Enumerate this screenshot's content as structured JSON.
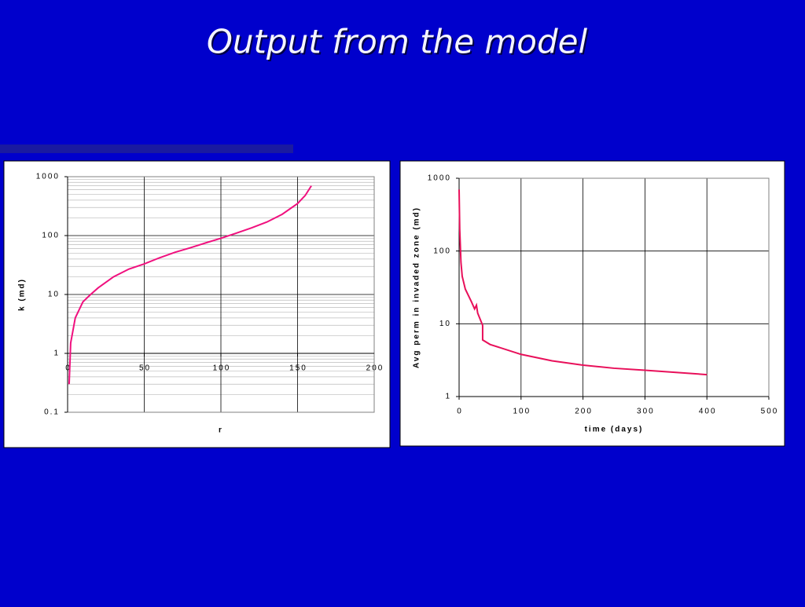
{
  "title": "Output from the model",
  "chart_data": [
    {
      "type": "line",
      "xlabel": "r",
      "ylabel": "k (md)",
      "xlim": [
        0,
        200
      ],
      "xticks": [
        0,
        50,
        100,
        150,
        200
      ],
      "ylim": [
        0.1,
        1000
      ],
      "yticks": [
        0.1,
        1,
        10,
        100,
        1000
      ],
      "log_y": true,
      "grid": true,
      "minor_grid": true,
      "x_axis_crosses": 1,
      "series": [
        {
          "color": "#f0107e",
          "x": [
            1,
            2,
            5,
            10,
            15,
            20,
            30,
            40,
            50,
            60,
            70,
            80,
            90,
            100,
            110,
            120,
            130,
            140,
            150,
            155,
            159
          ],
          "values": [
            0.3,
            1.5,
            4,
            7.5,
            10,
            13,
            20,
            27,
            33,
            42,
            52,
            62,
            75,
            90,
            110,
            135,
            170,
            230,
            350,
            480,
            700
          ]
        }
      ]
    },
    {
      "type": "line",
      "xlabel": "time (days)",
      "ylabel": "Avg perm in invaded zone (md)",
      "xlim": [
        0,
        500
      ],
      "xticks": [
        0,
        100,
        200,
        300,
        400,
        500
      ],
      "ylim": [
        1,
        1000
      ],
      "yticks": [
        1,
        10,
        100,
        1000
      ],
      "log_y": true,
      "grid": true,
      "minor_grid": false,
      "x_axis_crosses": 1,
      "series": [
        {
          "color": "#e8105a",
          "x": [
            0,
            1,
            3,
            5,
            10,
            20,
            25,
            28,
            30,
            35,
            38,
            38,
            50,
            100,
            150,
            200,
            250,
            300,
            350,
            400
          ],
          "values": [
            700,
            200,
            70,
            45,
            30,
            20,
            16,
            18,
            14,
            11,
            9.5,
            6,
            5.2,
            3.8,
            3.1,
            2.7,
            2.45,
            2.3,
            2.15,
            2.0
          ]
        }
      ]
    }
  ]
}
